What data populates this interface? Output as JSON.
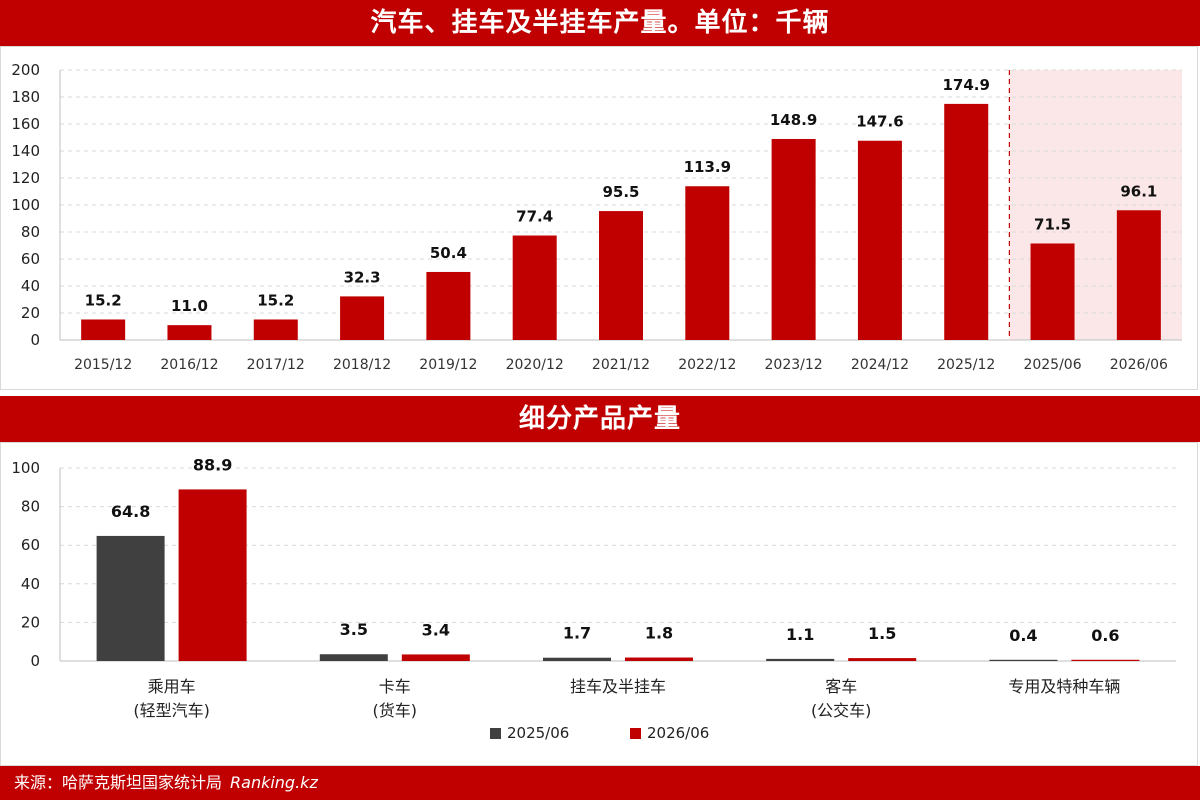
{
  "title_top": "汽车、挂车及半挂车产量。单位：千辆",
  "title_bottom": "细分产品产量",
  "footer": {
    "source": "来源：哈萨克斯坦国家统计局",
    "brand": "Ranking.kz"
  },
  "colors": {
    "red": "#c00000",
    "dark": "#404040",
    "highlight": "#fbe7e7"
  },
  "chart_data": [
    {
      "type": "bar",
      "categories": [
        "2015/12",
        "2016/12",
        "2017/12",
        "2018/12",
        "2019/12",
        "2020/12",
        "2021/12",
        "2022/12",
        "2023/12",
        "2024/12",
        "2025/12",
        "2025/06",
        "2026/06"
      ],
      "values": [
        15.2,
        11.0,
        15.2,
        32.3,
        50.4,
        77.4,
        95.5,
        113.9,
        148.9,
        147.6,
        174.9,
        71.5,
        96.1
      ],
      "value_labels": [
        "15.2",
        "11.0",
        "15.2",
        "32.3",
        "50.4",
        "77.4",
        "95.5",
        "113.9",
        "148.9",
        "147.6",
        "174.9",
        "71.5",
        "96.1"
      ],
      "yticks": [
        "0",
        "20",
        "40",
        "60",
        "80",
        "100",
        "120",
        "140",
        "160",
        "180",
        "200"
      ],
      "ylim": [
        0,
        200
      ],
      "grid": true,
      "highlighted_categories": [
        "2025/06",
        "2026/06"
      ]
    },
    {
      "type": "bar",
      "categories": [
        [
          "乘用车",
          "(轻型汽车)"
        ],
        [
          "卡车",
          "(货车)"
        ],
        [
          "挂车及半挂车"
        ],
        [
          "客车",
          "(公交车)"
        ],
        [
          "专用及特种车辆"
        ]
      ],
      "series": [
        {
          "name": "2025/06",
          "values": [
            64.8,
            3.5,
            1.7,
            1.1,
            0.4
          ],
          "labels": [
            "64.8",
            "3.5",
            "1.7",
            "1.1",
            "0.4"
          ],
          "color": "#404040"
        },
        {
          "name": "2026/06",
          "values": [
            88.9,
            3.4,
            1.8,
            1.5,
            0.6
          ],
          "labels": [
            "88.9",
            "3.4",
            "1.8",
            "1.5",
            "0.6"
          ],
          "color": "#c00000"
        }
      ],
      "yticks": [
        "0",
        "20",
        "40",
        "60",
        "80",
        "100"
      ],
      "ylim": [
        0,
        100
      ],
      "grid": true,
      "legend": "bottom-center"
    }
  ]
}
